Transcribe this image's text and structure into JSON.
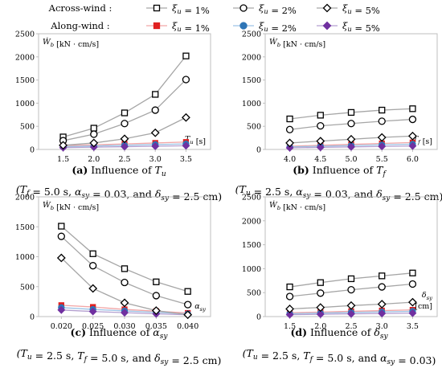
{
  "legend": {
    "across_label": "Across-wind :",
    "along_label": "Along-wind :",
    "entries": [
      "ξ_u = 1%",
      "ξ_u = 2%",
      "ξ_u = 5%"
    ]
  },
  "colors": {
    "across_line": "#a6a6a6",
    "across_marker": "#000000",
    "along_1": "#e02020",
    "along_2": "#2e75b6",
    "along_5": "#7030a0",
    "along_line_1": "#f2a6a6",
    "along_line_2": "#9dc3e6",
    "along_line_5": "#b4a0d0"
  },
  "marker_shapes": {
    "1": "square",
    "2": "circle",
    "5": "diamond"
  },
  "chart_data": [
    {
      "id": "a",
      "type": "line",
      "ylabel": "Ẇ_b [kN · cm/s]",
      "xlabel": "T_u [s]",
      "x": [
        1.5,
        2.0,
        2.5,
        3.0,
        3.5
      ],
      "x_ticks": [
        "1.5",
        "2.0",
        "2.5",
        "3.0",
        "3.5"
      ],
      "xlim": [
        1.1,
        3.9
      ],
      "ylim": [
        0,
        2500
      ],
      "y_ticks": [
        "0",
        "500",
        "1000",
        "1500",
        "2000",
        "2500"
      ],
      "series": [
        {
          "group": "across",
          "xi": "1",
          "values": [
            270,
            460,
            790,
            1190,
            2020
          ]
        },
        {
          "group": "across",
          "xi": "2",
          "values": [
            190,
            330,
            560,
            850,
            1510
          ]
        },
        {
          "group": "across",
          "xi": "5",
          "values": [
            90,
            140,
            230,
            360,
            690
          ]
        },
        {
          "group": "along",
          "xi": "1",
          "values": [
            80,
            100,
            120,
            140,
            160
          ]
        },
        {
          "group": "along",
          "xi": "2",
          "values": [
            60,
            75,
            90,
            105,
            120
          ]
        },
        {
          "group": "along",
          "xi": "5",
          "values": [
            40,
            50,
            60,
            70,
            80
          ]
        }
      ],
      "caption_letter": "(a)",
      "caption_text": " Influence of ",
      "caption_symbol": "T_u",
      "note": "(T_f = 5.0 s,  α_sy = 0.03, and  δ_sy = 2.5 cm)"
    },
    {
      "id": "b",
      "type": "line",
      "ylabel": "Ẇ_b [kN · cm/s]",
      "xlabel": "T_f [s]",
      "x": [
        4.0,
        4.5,
        5.0,
        5.5,
        6.0
      ],
      "x_ticks": [
        "4.0",
        "4.5",
        "5.0",
        "5.5",
        "6.0"
      ],
      "xlim": [
        3.6,
        6.4
      ],
      "ylim": [
        0,
        2500
      ],
      "y_ticks": [
        "0",
        "500",
        "1000",
        "1500",
        "2000",
        "2500"
      ],
      "series": [
        {
          "group": "across",
          "xi": "1",
          "values": [
            660,
            740,
            800,
            850,
            880
          ]
        },
        {
          "group": "across",
          "xi": "2",
          "values": [
            430,
            510,
            560,
            610,
            650
          ]
        },
        {
          "group": "across",
          "xi": "5",
          "values": [
            140,
            180,
            220,
            260,
            290
          ]
        },
        {
          "group": "along",
          "xi": "1",
          "values": [
            70,
            90,
            110,
            130,
            150
          ]
        },
        {
          "group": "along",
          "xi": "2",
          "values": [
            55,
            70,
            85,
            100,
            115
          ]
        },
        {
          "group": "along",
          "xi": "5",
          "values": [
            35,
            45,
            55,
            65,
            75
          ]
        }
      ],
      "caption_letter": "(b)",
      "caption_text": " Influence of ",
      "caption_symbol": "T_f",
      "note": "(T_u = 2.5 s,  α_sy = 0.03, and  δ_sy = 2.5 cm)"
    },
    {
      "id": "c",
      "type": "line",
      "ylabel": "Ẇ_b [kN · cm/s]",
      "xlabel": "α_sy",
      "x": [
        0.02,
        0.025,
        0.03,
        0.035,
        0.04
      ],
      "x_ticks": [
        "0.020",
        "0.025",
        "0.030",
        "0.035",
        "0.040"
      ],
      "xlim": [
        0.0164,
        0.0436
      ],
      "ylim": [
        0,
        2000
      ],
      "y_ticks": [
        "0",
        "500",
        "1000",
        "1500",
        "2000"
      ],
      "series": [
        {
          "group": "across",
          "xi": "1",
          "values": [
            1510,
            1050,
            800,
            580,
            420
          ]
        },
        {
          "group": "across",
          "xi": "2",
          "values": [
            1340,
            850,
            570,
            350,
            200
          ]
        },
        {
          "group": "across",
          "xi": "5",
          "values": [
            980,
            470,
            230,
            100,
            30
          ]
        },
        {
          "group": "along",
          "xi": "1",
          "values": [
            190,
            160,
            120,
            90,
            60
          ]
        },
        {
          "group": "along",
          "xi": "2",
          "values": [
            150,
            120,
            95,
            70,
            45
          ]
        },
        {
          "group": "along",
          "xi": "5",
          "values": [
            110,
            85,
            65,
            45,
            30
          ]
        }
      ],
      "caption_letter": "(c)",
      "caption_text": " Influence of ",
      "caption_symbol": "α_sy",
      "note": "(T_u = 2.5 s,  T_f = 5.0 s, and  δ_sy = 2.5 cm)"
    },
    {
      "id": "d",
      "type": "line",
      "ylabel": "Ẇ_b [kN · cm/s]",
      "xlabel": "δ_sy [cm]",
      "x": [
        1.5,
        2.0,
        2.5,
        3.0,
        3.5
      ],
      "x_ticks": [
        "1.5",
        "2.0",
        "2.5",
        "3.0",
        "3.5"
      ],
      "xlim": [
        1.1,
        3.9
      ],
      "ylim": [
        0,
        2500
      ],
      "y_ticks": [
        "0",
        "500",
        "1000",
        "1500",
        "2000",
        "2500"
      ],
      "series": [
        {
          "group": "across",
          "xi": "1",
          "values": [
            620,
            710,
            790,
            850,
            910
          ]
        },
        {
          "group": "across",
          "xi": "2",
          "values": [
            420,
            490,
            560,
            620,
            680
          ]
        },
        {
          "group": "across",
          "xi": "5",
          "values": [
            160,
            190,
            230,
            260,
            300
          ]
        },
        {
          "group": "along",
          "xi": "1",
          "values": [
            80,
            95,
            110,
            125,
            140
          ]
        },
        {
          "group": "along",
          "xi": "2",
          "values": [
            60,
            72,
            85,
            98,
            110
          ]
        },
        {
          "group": "along",
          "xi": "5",
          "values": [
            40,
            48,
            56,
            64,
            72
          ]
        }
      ],
      "caption_letter": "(d)",
      "caption_text": " Influence of ",
      "caption_symbol": "δ_sy",
      "note": "(T_u = 2.5 s,  T_f = 5.0 s, and  α_sy = 0.03)"
    }
  ]
}
